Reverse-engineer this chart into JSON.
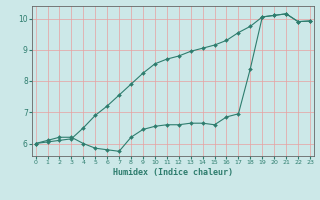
{
  "xlabel": "Humidex (Indice chaleur)",
  "bg_color": "#cce8e8",
  "line_color": "#2e7d6e",
  "grid_color": "#e8a0a0",
  "line1_x": [
    0,
    1,
    2,
    3,
    4,
    5,
    6,
    7,
    8,
    9,
    10,
    11,
    12,
    13,
    14,
    15,
    16,
    17,
    18,
    19,
    20,
    21,
    22,
    23
  ],
  "line1_y": [
    6.0,
    6.1,
    6.2,
    6.2,
    6.0,
    5.85,
    5.8,
    5.75,
    6.2,
    6.45,
    6.55,
    6.6,
    6.6,
    6.65,
    6.65,
    6.6,
    6.85,
    6.95,
    8.4,
    10.05,
    10.1,
    10.15,
    9.9,
    9.92
  ],
  "line2_x": [
    0,
    1,
    2,
    3,
    4,
    5,
    6,
    7,
    8,
    9,
    10,
    11,
    12,
    13,
    14,
    15,
    16,
    17,
    18,
    19,
    20,
    21,
    22,
    23
  ],
  "line2_y": [
    6.0,
    6.05,
    6.1,
    6.15,
    6.5,
    6.9,
    7.2,
    7.55,
    7.9,
    8.25,
    8.55,
    8.7,
    8.8,
    8.95,
    9.05,
    9.15,
    9.3,
    9.55,
    9.75,
    10.05,
    10.1,
    10.15,
    9.9,
    9.92
  ],
  "xlim": [
    0,
    23
  ],
  "ylim": [
    5.6,
    10.4
  ],
  "yticks": [
    6,
    7,
    8,
    9,
    10
  ],
  "xticks": [
    0,
    1,
    2,
    3,
    4,
    5,
    6,
    7,
    8,
    9,
    10,
    11,
    12,
    13,
    14,
    15,
    16,
    17,
    18,
    19,
    20,
    21,
    22,
    23
  ],
  "figsize": [
    3.2,
    2.0
  ],
  "dpi": 100
}
